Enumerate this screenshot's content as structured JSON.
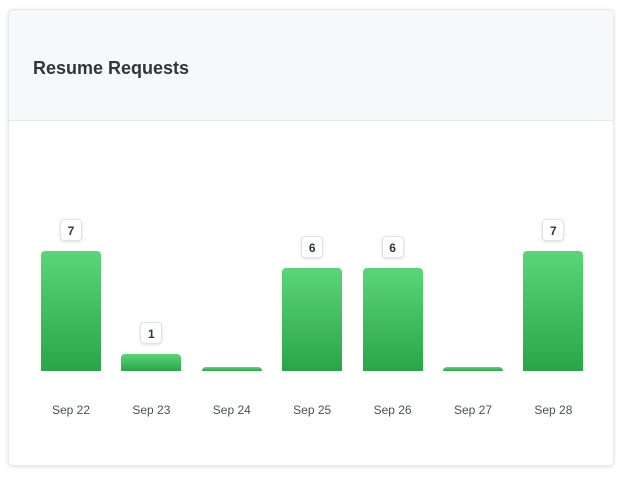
{
  "card": {
    "title": "Resume Requests"
  },
  "colors": {
    "bar_top": "#5ad577",
    "bar_bottom": "#2aa548"
  },
  "chart_data": {
    "type": "bar",
    "categories": [
      "Sep 22",
      "Sep 23",
      "Sep 24",
      "Sep 25",
      "Sep 26",
      "Sep 27",
      "Sep 28"
    ],
    "values": [
      7,
      1,
      0,
      6,
      6,
      0,
      7
    ],
    "title": "Resume Requests",
    "xlabel": "",
    "ylabel": "",
    "ylim": [
      0,
      7
    ],
    "grid": false,
    "data_labels": true
  }
}
